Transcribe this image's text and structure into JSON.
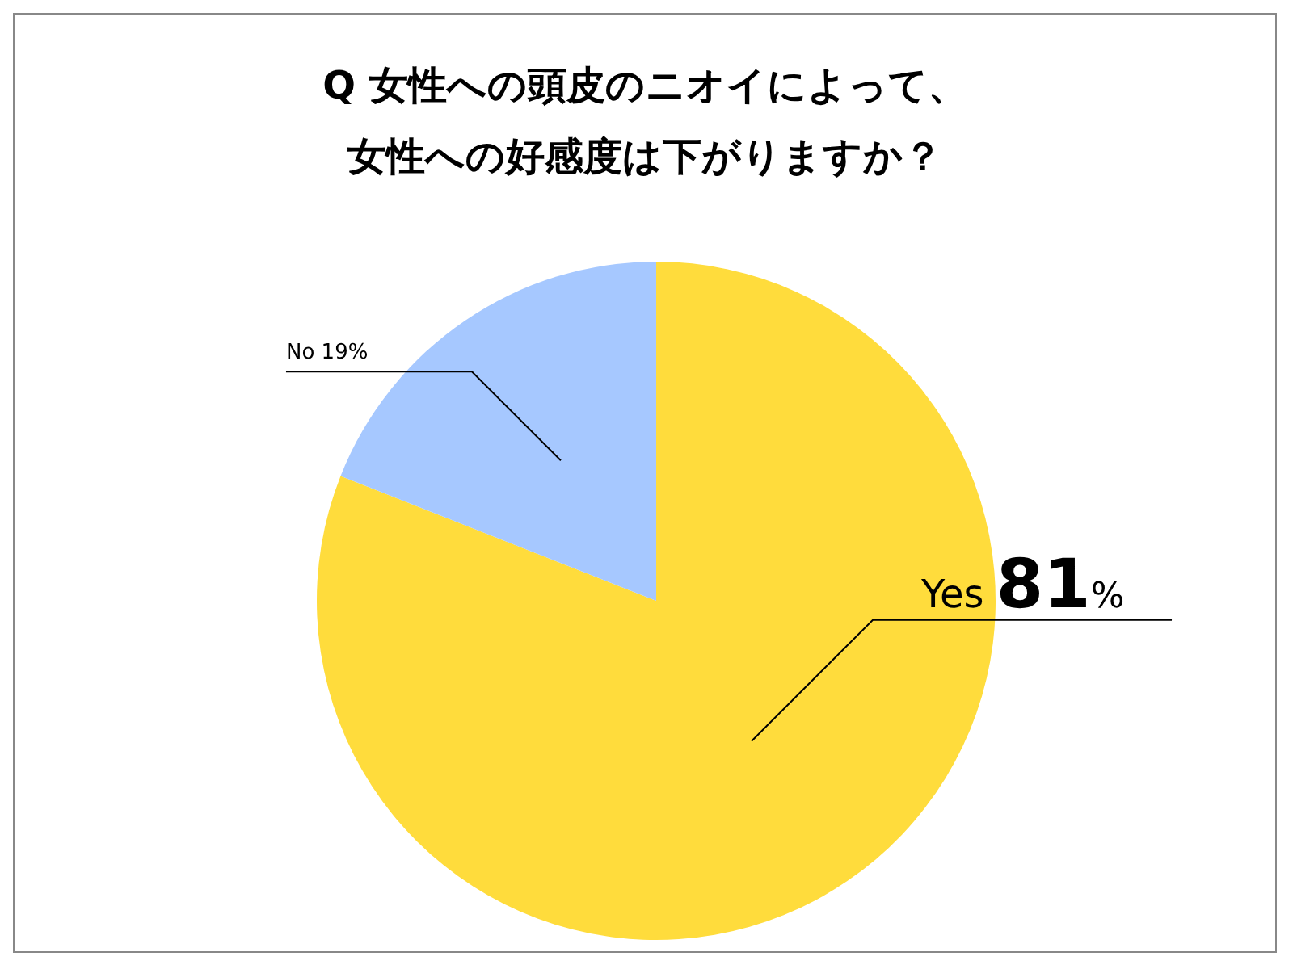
{
  "chart_data": {
    "type": "pie",
    "title": "Q 女性への頭皮のニオイによって、女性への好感度は下がりますか？",
    "categories": [
      "Yes",
      "No"
    ],
    "values": [
      81,
      19
    ],
    "colors": [
      "#ffdc3c",
      "#a6c8ff"
    ],
    "value_labels": [
      "81%",
      "19%"
    ],
    "legend": false
  }
}
